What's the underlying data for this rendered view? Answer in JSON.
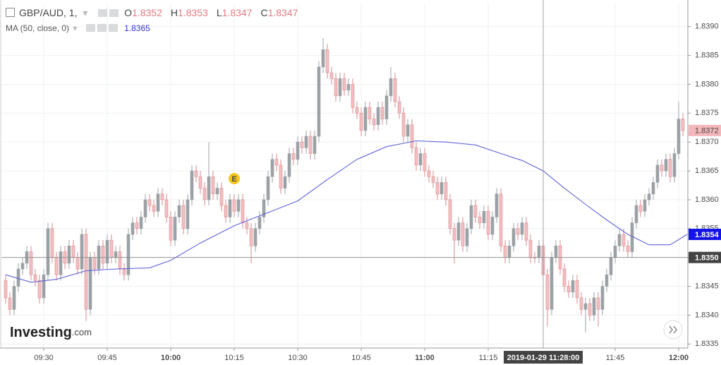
{
  "chart_data": {
    "type": "candlestick",
    "title": "GBP/AUD, 1,",
    "ohlc_legend": [
      {
        "label": "O",
        "value": 1.8352
      },
      {
        "label": "H",
        "value": 1.8353
      },
      {
        "label": "L",
        "value": 1.8347
      },
      {
        "label": "C",
        "value": 1.8347
      }
    ],
    "x": [
      "09:21",
      "09:22",
      "09:23",
      "09:24",
      "09:25",
      "09:26",
      "09:27",
      "09:28",
      "09:29",
      "09:30",
      "09:31",
      "09:32",
      "09:33",
      "09:34",
      "09:35",
      "09:36",
      "09:37",
      "09:38",
      "09:39",
      "09:40",
      "09:41",
      "09:42",
      "09:43",
      "09:44",
      "09:45",
      "09:46",
      "09:47",
      "09:48",
      "09:49",
      "09:50",
      "09:51",
      "09:52",
      "09:53",
      "09:54",
      "09:55",
      "09:56",
      "09:57",
      "09:58",
      "09:59",
      "10:00",
      "10:01",
      "10:02",
      "10:03",
      "10:04",
      "10:05",
      "10:06",
      "10:07",
      "10:08",
      "10:09",
      "10:10",
      "10:11",
      "10:12",
      "10:13",
      "10:14",
      "10:15",
      "10:16",
      "10:17",
      "10:18",
      "10:19",
      "10:20",
      "10:21",
      "10:22",
      "10:23",
      "10:24",
      "10:25",
      "10:26",
      "10:27",
      "10:28",
      "10:29",
      "10:30",
      "10:31",
      "10:32",
      "10:33",
      "10:34",
      "10:35",
      "10:36",
      "10:37",
      "10:38",
      "10:39",
      "10:40",
      "10:41",
      "10:42",
      "10:43",
      "10:44",
      "10:45",
      "10:46",
      "10:47",
      "10:48",
      "10:49",
      "10:50",
      "10:51",
      "10:52",
      "10:53",
      "10:54",
      "10:55",
      "10:56",
      "10:57",
      "10:58",
      "10:59",
      "11:00",
      "11:01",
      "11:02",
      "11:03",
      "11:04",
      "11:05",
      "11:06",
      "11:07",
      "11:08",
      "11:09",
      "11:10",
      "11:11",
      "11:12",
      "11:13",
      "11:14",
      "11:15",
      "11:16",
      "11:17",
      "11:18",
      "11:19",
      "11:20",
      "11:21",
      "11:22",
      "11:23",
      "11:24",
      "11:25",
      "11:26",
      "11:27",
      "11:28",
      "11:29",
      "11:30",
      "11:31",
      "11:32",
      "11:33",
      "11:34",
      "11:35",
      "11:36",
      "11:37",
      "11:38",
      "11:39",
      "11:40",
      "11:41",
      "11:42",
      "11:43",
      "11:44",
      "11:45",
      "11:46",
      "11:47",
      "11:48",
      "11:49",
      "11:50",
      "11:51",
      "11:52",
      "11:53",
      "11:54",
      "11:55",
      "11:56",
      "11:57",
      "11:58",
      "11:59",
      "12:00",
      "12:01"
    ],
    "series": [
      {
        "open": [
          1.8346,
          1.8343,
          1.8341,
          1.8345,
          1.8348,
          1.8349,
          1.8351,
          1.8347,
          1.8346,
          1.8343,
          1.8347,
          1.8355,
          1.835,
          1.8347,
          1.8351,
          1.8349,
          1.8352,
          1.835,
          1.8348,
          1.8354,
          1.8341,
          1.835,
          1.8348,
          1.8352,
          1.8349,
          1.8353,
          1.835,
          1.8351,
          1.8348,
          1.8347,
          1.8354,
          1.8356,
          1.8355,
          1.8357,
          1.836,
          1.8359,
          1.8358,
          1.8361,
          1.836,
          1.8357,
          1.8353,
          1.8357,
          1.8359,
          1.8355,
          1.836,
          1.8365,
          1.8364,
          1.8362,
          1.836,
          1.8364,
          1.8361,
          1.8362,
          1.8359,
          1.8357,
          1.836,
          1.8358,
          1.836,
          1.8356,
          1.8355,
          1.8352,
          1.8355,
          1.8357,
          1.836,
          1.8364,
          1.8367,
          1.8366,
          1.8362,
          1.8364,
          1.8368,
          1.8367,
          1.837,
          1.8369,
          1.8371,
          1.8368,
          1.8371,
          1.8383,
          1.8386,
          1.8382,
          1.8381,
          1.8378,
          1.8381,
          1.8379,
          1.838,
          1.8376,
          1.8375,
          1.8372,
          1.8376,
          1.8374,
          1.8373,
          1.8376,
          1.8374,
          1.8378,
          1.8381,
          1.8377,
          1.8375,
          1.8371,
          1.8373,
          1.8369,
          1.8366,
          1.8368,
          1.8365,
          1.8364,
          1.8363,
          1.8361,
          1.8363,
          1.836,
          1.8355,
          1.8353,
          1.8356,
          1.8352,
          1.8355,
          1.8359,
          1.8357,
          1.8356,
          1.8358,
          1.8354,
          1.8357,
          1.8361,
          1.8352,
          1.835,
          1.8352,
          1.8355,
          1.8354,
          1.8356,
          1.8353,
          1.835,
          1.835,
          1.8352,
          1.8347,
          1.8341,
          1.835,
          1.8352,
          1.8348,
          1.8345,
          1.8344,
          1.8346,
          1.8343,
          1.8341,
          1.8342,
          1.834,
          1.8343,
          1.8341,
          1.8345,
          1.8347,
          1.835,
          1.8352,
          1.8354,
          1.8352,
          1.8351,
          1.8356,
          1.8359,
          1.8358,
          1.836,
          1.8361,
          1.8363,
          1.8366,
          1.8365,
          1.8367,
          1.8364,
          1.8368,
          1.8374
        ],
        "high": [
          1.8347,
          1.8344,
          1.8346,
          1.8349,
          1.835,
          1.8352,
          1.8352,
          1.8348,
          1.8347,
          1.8348,
          1.8356,
          1.8356,
          1.8351,
          1.8352,
          1.8352,
          1.8353,
          1.8353,
          1.8351,
          1.8355,
          1.8355,
          1.8351,
          1.8351,
          1.8353,
          1.8353,
          1.8354,
          1.8354,
          1.8352,
          1.8352,
          1.8349,
          1.8355,
          1.8357,
          1.8357,
          1.8358,
          1.8361,
          1.8361,
          1.836,
          1.8362,
          1.8362,
          1.8361,
          1.8358,
          1.8358,
          1.836,
          1.836,
          1.8361,
          1.8366,
          1.8366,
          1.8365,
          1.8363,
          1.837,
          1.8365,
          1.8363,
          1.8363,
          1.836,
          1.8361,
          1.8361,
          1.8361,
          1.8361,
          1.8357,
          1.8356,
          1.8356,
          1.8358,
          1.8361,
          1.8365,
          1.8368,
          1.8368,
          1.8367,
          1.8365,
          1.8369,
          1.8369,
          1.8371,
          1.8371,
          1.8372,
          1.8372,
          1.8372,
          1.8384,
          1.8388,
          1.8387,
          1.8383,
          1.8382,
          1.8382,
          1.8382,
          1.8381,
          1.8381,
          1.8377,
          1.8376,
          1.8377,
          1.8377,
          1.8375,
          1.8377,
          1.8377,
          1.8379,
          1.8383,
          1.8382,
          1.8378,
          1.8376,
          1.8374,
          1.8374,
          1.837,
          1.8369,
          1.8369,
          1.8366,
          1.8365,
          1.8364,
          1.8364,
          1.8364,
          1.8361,
          1.8356,
          1.8357,
          1.8357,
          1.8356,
          1.836,
          1.836,
          1.8358,
          1.8359,
          1.8359,
          1.8358,
          1.8362,
          1.8362,
          1.8353,
          1.8353,
          1.8356,
          1.8356,
          1.8357,
          1.8357,
          1.8354,
          1.8351,
          1.8353,
          1.8353,
          1.8348,
          1.8351,
          1.8353,
          1.8353,
          1.8349,
          1.8346,
          1.8347,
          1.8347,
          1.8344,
          1.8343,
          1.8343,
          1.8344,
          1.8344,
          1.8346,
          1.8348,
          1.8351,
          1.8353,
          1.8355,
          1.8355,
          1.8353,
          1.8357,
          1.836,
          1.836,
          1.8361,
          1.8362,
          1.8364,
          1.8367,
          1.8367,
          1.8368,
          1.8368,
          1.8369,
          1.8377,
          1.8375
        ],
        "low": [
          1.8342,
          1.834,
          1.834,
          1.8344,
          1.8347,
          1.8348,
          1.8346,
          1.8345,
          1.8342,
          1.8342,
          1.8346,
          1.8349,
          1.8346,
          1.8346,
          1.8348,
          1.8348,
          1.8349,
          1.8347,
          1.8347,
          1.8339,
          1.834,
          1.8347,
          1.8347,
          1.8348,
          1.8348,
          1.8349,
          1.8349,
          1.8347,
          1.8346,
          1.8346,
          1.8353,
          1.8354,
          1.8354,
          1.8356,
          1.8358,
          1.8357,
          1.8357,
          1.8359,
          1.8356,
          1.8352,
          1.8352,
          1.8356,
          1.8354,
          1.8354,
          1.8359,
          1.8363,
          1.8361,
          1.8359,
          1.8359,
          1.836,
          1.836,
          1.8358,
          1.8356,
          1.8356,
          1.8357,
          1.8357,
          1.8355,
          1.8354,
          1.8349,
          1.8351,
          1.8354,
          1.8356,
          1.8359,
          1.8363,
          1.8365,
          1.8361,
          1.8361,
          1.8363,
          1.8366,
          1.8366,
          1.8368,
          1.8368,
          1.8367,
          1.8367,
          1.837,
          1.8382,
          1.8381,
          1.838,
          1.8377,
          1.8377,
          1.8378,
          1.8378,
          1.8375,
          1.8374,
          1.8371,
          1.8371,
          1.8373,
          1.8372,
          1.8372,
          1.8373,
          1.8373,
          1.8377,
          1.8376,
          1.8374,
          1.837,
          1.837,
          1.8368,
          1.8365,
          1.8365,
          1.8364,
          1.8363,
          1.8362,
          1.836,
          1.836,
          1.8359,
          1.8354,
          1.8349,
          1.8352,
          1.8351,
          1.8351,
          1.8354,
          1.8356,
          1.8355,
          1.8355,
          1.8353,
          1.8353,
          1.8356,
          1.8351,
          1.8349,
          1.8349,
          1.8351,
          1.8353,
          1.8353,
          1.8352,
          1.8349,
          1.8349,
          1.8349,
          1.8347,
          1.8338,
          1.834,
          1.8349,
          1.8347,
          1.8344,
          1.8343,
          1.8343,
          1.8342,
          1.834,
          1.8337,
          1.8339,
          1.8339,
          1.8338,
          1.834,
          1.8344,
          1.8346,
          1.8349,
          1.8351,
          1.8351,
          1.835,
          1.835,
          1.8355,
          1.8357,
          1.8357,
          1.8359,
          1.836,
          1.8362,
          1.8364,
          1.8364,
          1.8363,
          1.8363,
          1.8367,
          1.8371
        ],
        "close": [
          1.8343,
          1.8341,
          1.8345,
          1.8348,
          1.8349,
          1.8351,
          1.8347,
          1.8346,
          1.8343,
          1.8347,
          1.8355,
          1.835,
          1.8347,
          1.8351,
          1.8349,
          1.8352,
          1.835,
          1.8348,
          1.8354,
          1.8341,
          1.835,
          1.8348,
          1.8352,
          1.8349,
          1.8353,
          1.835,
          1.8351,
          1.8348,
          1.8347,
          1.8354,
          1.8356,
          1.8355,
          1.8357,
          1.836,
          1.8359,
          1.8358,
          1.8361,
          1.836,
          1.8357,
          1.8353,
          1.8357,
          1.8359,
          1.8355,
          1.836,
          1.8365,
          1.8364,
          1.8362,
          1.836,
          1.8364,
          1.8361,
          1.8362,
          1.8359,
          1.8357,
          1.836,
          1.8358,
          1.836,
          1.8356,
          1.8355,
          1.8352,
          1.8355,
          1.8357,
          1.836,
          1.8364,
          1.8367,
          1.8366,
          1.8362,
          1.8364,
          1.8368,
          1.8367,
          1.837,
          1.8369,
          1.8371,
          1.8368,
          1.8371,
          1.8383,
          1.8386,
          1.8382,
          1.8381,
          1.8378,
          1.8381,
          1.8379,
          1.838,
          1.8376,
          1.8375,
          1.8372,
          1.8376,
          1.8374,
          1.8373,
          1.8376,
          1.8374,
          1.8378,
          1.8381,
          1.8377,
          1.8375,
          1.8371,
          1.8373,
          1.8369,
          1.8366,
          1.8368,
          1.8365,
          1.8364,
          1.8363,
          1.8361,
          1.8363,
          1.836,
          1.8355,
          1.8353,
          1.8356,
          1.8352,
          1.8355,
          1.8359,
          1.8357,
          1.8356,
          1.8358,
          1.8354,
          1.8357,
          1.8361,
          1.8352,
          1.835,
          1.8352,
          1.8355,
          1.8354,
          1.8356,
          1.8353,
          1.835,
          1.835,
          1.8352,
          1.8347,
          1.8341,
          1.835,
          1.8352,
          1.8348,
          1.8345,
          1.8344,
          1.8346,
          1.8343,
          1.8341,
          1.8342,
          1.834,
          1.8343,
          1.8341,
          1.8345,
          1.8347,
          1.835,
          1.8352,
          1.8354,
          1.8352,
          1.8351,
          1.8356,
          1.8359,
          1.8358,
          1.836,
          1.8361,
          1.8363,
          1.8366,
          1.8365,
          1.8367,
          1.8364,
          1.8368,
          1.8374,
          1.8372
        ],
        "up_color": "#9ba1a4",
        "down_color": "#f3bfc2",
        "down_border": "#d98a8f",
        "current_price": 1.8372,
        "current_color": "#f3b6ba"
      }
    ],
    "ma": {
      "name": "MA (50, close, 0)",
      "legend_value": 1.8365,
      "color": "#5e62d8",
      "x": [
        "09:21",
        "09:27",
        "09:33",
        "09:40",
        "09:47",
        "09:55",
        "10:00",
        "10:07",
        "10:15",
        "10:22",
        "10:30",
        "10:37",
        "10:44",
        "10:51",
        "10:58",
        "11:05",
        "11:12",
        "11:18",
        "11:23",
        "11:28",
        "11:33",
        "11:38",
        "11:43",
        "11:48",
        "11:53",
        "11:58",
        "12:02"
      ],
      "values": [
        1.8347,
        1.83457,
        1.83462,
        1.83477,
        1.8348,
        1.83482,
        1.83495,
        1.83525,
        1.83555,
        1.83575,
        1.83598,
        1.83635,
        1.8367,
        1.83692,
        1.83702,
        1.837,
        1.83695,
        1.8368,
        1.83668,
        1.8365,
        1.8362,
        1.83592,
        1.83565,
        1.8354,
        1.83522,
        1.83522,
        1.8354
      ],
      "current_value": 1.8354,
      "current_color": "#1414e6"
    },
    "xlim": [
      "09:20",
      "12:02"
    ],
    "xticks": [
      "09:30",
      "09:45",
      "10:00",
      "10:15",
      "10:30",
      "10:45",
      "11:00",
      "11:15",
      "11:45",
      "12:00"
    ],
    "ylim": [
      1.83343,
      1.8394
    ],
    "yticks": [
      1.8335,
      {
        "value": 1.834,
        "label": "1.8340"
      },
      1.8345,
      {
        "value": 1.835,
        "label": "1.8350"
      },
      1.8355,
      {
        "value": 1.836,
        "label": "1.8360"
      },
      1.8365,
      {
        "value": 1.837,
        "label": "1.8370"
      },
      1.8375,
      {
        "value": 1.838,
        "label": "1.8380"
      },
      1.8385,
      {
        "value": 1.839,
        "label": "1.8390"
      }
    ],
    "grid": true,
    "crosshair": {
      "x": "2019-01-29 11:28:00",
      "y": {
        "value": 1.835,
        "label": "1.8350"
      }
    },
    "events": [
      {
        "label": "E",
        "x": "10:15"
      }
    ],
    "watermark": [
      "Investing",
      ".com"
    ]
  }
}
